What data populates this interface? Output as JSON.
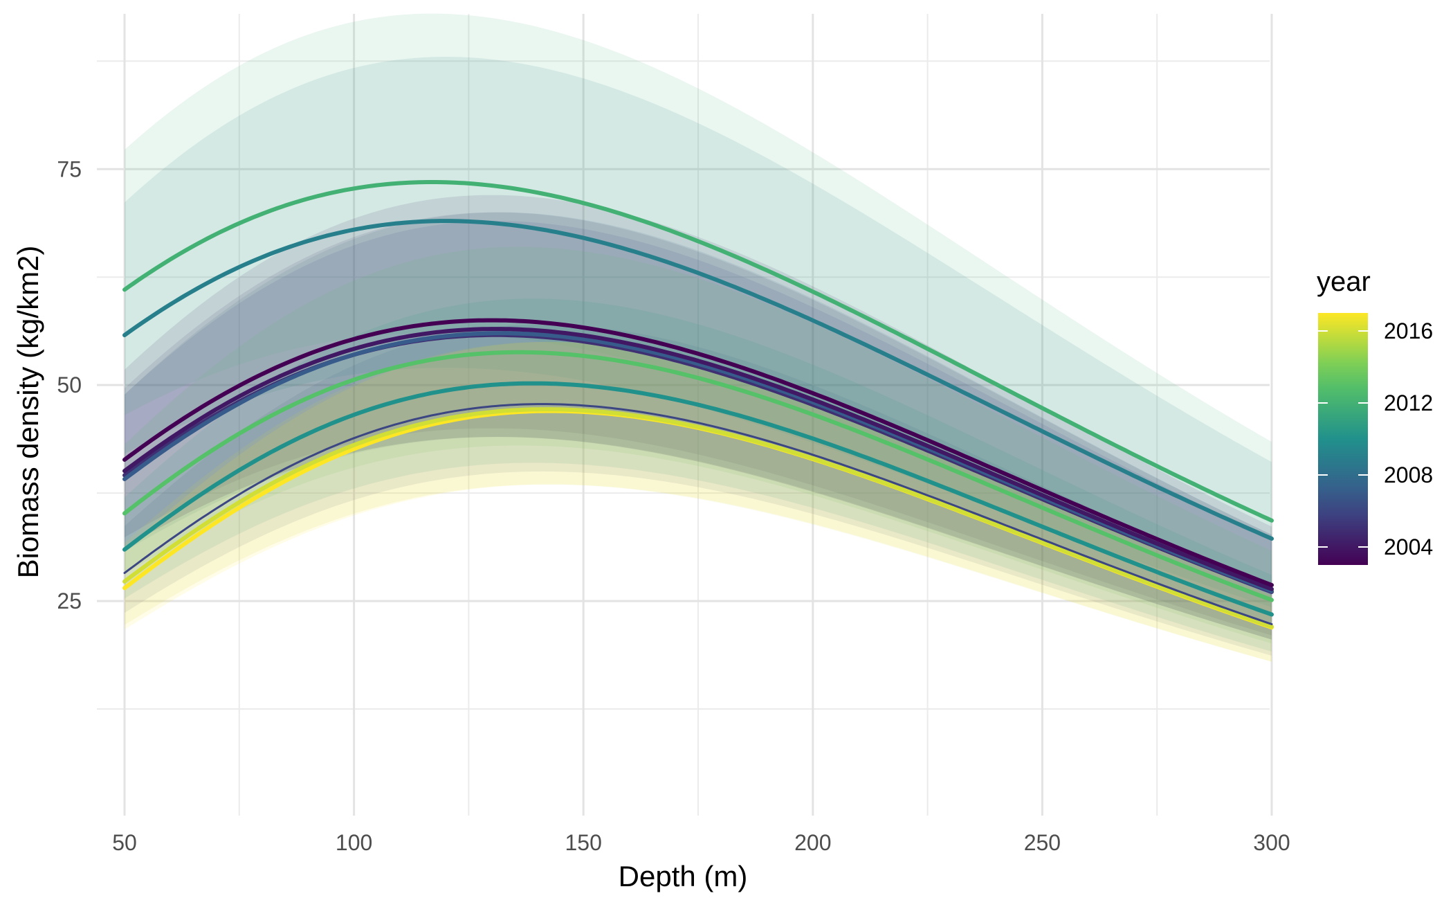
{
  "chart_data": {
    "type": "line",
    "title": "",
    "xlabel": "Depth (m)",
    "ylabel": "Biomass density (kg/km2)",
    "xlim": [
      50,
      300
    ],
    "ylim": [
      0,
      92
    ],
    "x_ticks": [
      50,
      100,
      150,
      200,
      250,
      300
    ],
    "y_ticks": [
      25,
      50,
      75
    ],
    "x_tick_labels": [
      "50",
      "100",
      "150",
      "200",
      "250",
      "300"
    ],
    "y_tick_labels": [
      "25",
      "50",
      "75"
    ],
    "grid": true,
    "confidence_ribbons": true,
    "legend": {
      "title": "year",
      "type": "colorbar",
      "placement": "right",
      "range": [
        2003,
        2017
      ],
      "breaks": [
        2004,
        2008,
        2012,
        2016
      ],
      "labels": [
        "2016",
        "2012",
        "2008",
        "2004"
      ],
      "colormap": [
        "#440154",
        "#3b528b",
        "#21918c",
        "#5ec962",
        "#fde725"
      ]
    },
    "series": [
      {
        "year": 2003,
        "peak_depth": 130,
        "peak": 57.5,
        "ribbon_upper": 72,
        "ribbon_lower": 45
      },
      {
        "year": 2004,
        "peak_depth": 131,
        "peak": 56.5,
        "ribbon_upper": 70,
        "ribbon_lower": 44
      },
      {
        "year": 2005,
        "peak_depth": 131,
        "peak": 55.8,
        "ribbon_upper": 69,
        "ribbon_lower": 44
      },
      {
        "year": 2006,
        "peak_depth": 141,
        "peak": 47.8,
        "ribbon_upper": 57,
        "ribbon_lower": 40
      },
      {
        "year": 2007,
        "peak_depth": 132,
        "peak": 56.0,
        "ribbon_upper": 70,
        "ribbon_lower": 44
      },
      {
        "year": 2009,
        "peak_depth": 120,
        "peak": 69.0,
        "ribbon_upper": 88,
        "ribbon_lower": 52
      },
      {
        "year": 2010,
        "peak_depth": 139,
        "peak": 50.2,
        "ribbon_upper": 60,
        "ribbon_lower": 41
      },
      {
        "year": 2012,
        "peak_depth": 117,
        "peak": 73.5,
        "ribbon_upper": 93,
        "ribbon_lower": 56
      },
      {
        "year": 2013,
        "peak_depth": 136,
        "peak": 53.8,
        "ribbon_upper": 66,
        "ribbon_lower": 43
      },
      {
        "year": 2016,
        "peak_depth": 142,
        "peak": 47.2,
        "ribbon_upper": 55,
        "ribbon_lower": 38.5
      },
      {
        "year": 2017,
        "peak_depth": 143,
        "peak": 47.0,
        "ribbon_upper": 55,
        "ribbon_lower": 38.5
      }
    ]
  }
}
